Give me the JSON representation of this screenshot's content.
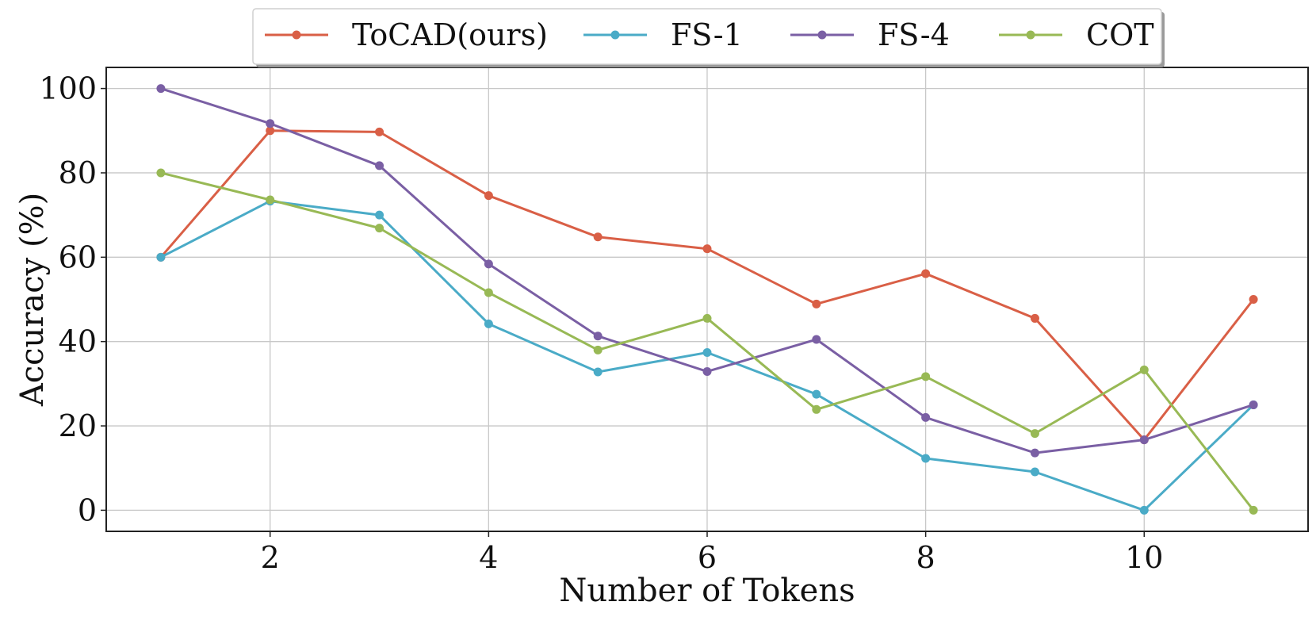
{
  "chart_data": {
    "type": "line",
    "title": "",
    "xlabel": "Number of Tokens",
    "ylabel": "Accuracy (%)",
    "xlim": [
      0.5,
      11.5
    ],
    "ylim": [
      -5,
      105
    ],
    "xticks": [
      2,
      4,
      6,
      8,
      10
    ],
    "xtick_labels": [
      "2",
      "4",
      "6",
      "8",
      "10"
    ],
    "yticks": [
      0,
      20,
      40,
      60,
      80,
      100
    ],
    "ytick_labels": [
      "0",
      "20",
      "40",
      "60",
      "80",
      "100"
    ],
    "grid": true,
    "legend_position": "top-center",
    "x": [
      1,
      2,
      3,
      4,
      5,
      6,
      7,
      8,
      9,
      10,
      11
    ],
    "series": [
      {
        "name": "ToCAD(ours)",
        "color": "#d95f46",
        "values": [
          60,
          90,
          89.7,
          74.6,
          64.8,
          62,
          48.9,
          56.1,
          45.5,
          16.7,
          50
        ]
      },
      {
        "name": "FS-1",
        "color": "#4aabc7",
        "values": [
          60,
          73.3,
          70,
          44.2,
          32.8,
          37.4,
          27.5,
          12.3,
          9.1,
          0,
          25
        ]
      },
      {
        "name": "FS-4",
        "color": "#7a5fa4",
        "values": [
          100,
          91.7,
          81.7,
          58.4,
          41.3,
          32.9,
          40.5,
          22,
          13.6,
          16.7,
          25
        ]
      },
      {
        "name": "COT",
        "color": "#98b955",
        "values": [
          80,
          73.6,
          66.9,
          51.6,
          38,
          45.5,
          23.9,
          31.7,
          18.2,
          33.3,
          0
        ]
      }
    ]
  }
}
